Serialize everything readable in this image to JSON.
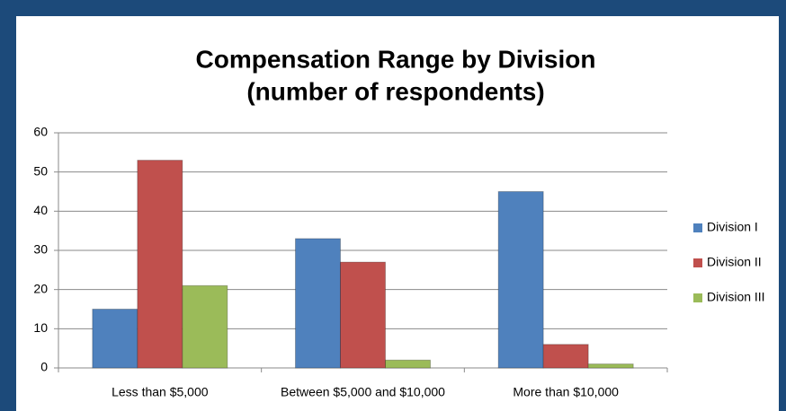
{
  "chart_data": {
    "type": "bar",
    "title": "Compensation Range by Division",
    "subtitle": "(number of respondents)",
    "categories": [
      "Less than $5,000",
      "Between $5,000 and $10,000",
      "More than $10,000"
    ],
    "series": [
      {
        "name": "Division I",
        "color": "#4f81bd",
        "values": [
          15,
          33,
          45
        ]
      },
      {
        "name": "Division II",
        "color": "#c0504d",
        "values": [
          53,
          27,
          6
        ]
      },
      {
        "name": "Division III",
        "color": "#9bbb59",
        "values": [
          21,
          2,
          1
        ]
      }
    ],
    "ylim": [
      0,
      60
    ],
    "yticks": [
      0,
      10,
      20,
      30,
      40,
      50,
      60
    ],
    "grid": true,
    "legend": "right"
  }
}
